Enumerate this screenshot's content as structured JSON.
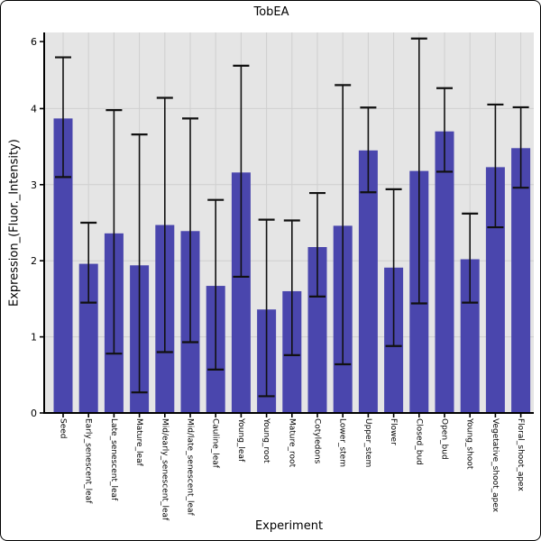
{
  "title": "TobEA",
  "colors": {
    "bar": "#4a46ad",
    "plot_bg": "#e5e5e5",
    "grid": "#cfcfcf",
    "axis": "#000000",
    "error": "#111111",
    "text": "#000000",
    "frame_border": "#000000",
    "page_bg": "#ffffff"
  },
  "chart_data": {
    "type": "bar",
    "title": "TobEA",
    "xlabel": "Experiment",
    "ylabel": "Expression_(Fluor._Intensity)",
    "categories": [
      "Seed",
      "Early_senescent_leaf",
      "Late_senescent_leaf",
      "Mature_leaf",
      "Mid/early_senescent_leaf",
      "Mid/late_senescent_leaf",
      "Cauline_leaf",
      "Young_leaf",
      "Young_root",
      "Mature_root",
      "Cotyledons",
      "Lower_stem",
      "Upper_stem",
      "Flower",
      "Closed_bud",
      "Open_bud",
      "Young_shoot",
      "Vegetative_shoot_apex",
      "Floral_shoot_apex"
    ],
    "values": [
      3.87,
      1.96,
      2.36,
      1.94,
      2.47,
      2.39,
      1.67,
      3.16,
      1.36,
      1.6,
      2.18,
      2.46,
      3.45,
      1.91,
      3.18,
      3.7,
      2.02,
      3.23,
      3.48
    ],
    "error_low": [
      3.1,
      1.45,
      0.78,
      0.27,
      0.8,
      0.93,
      0.57,
      1.79,
      0.22,
      0.76,
      1.53,
      0.64,
      2.9,
      0.88,
      1.44,
      3.17,
      1.45,
      2.44,
      2.96
    ],
    "error_high": [
      5.53,
      2.5,
      3.98,
      3.66,
      4.32,
      3.87,
      2.8,
      5.28,
      2.54,
      2.53,
      2.89,
      4.7,
      4.03,
      2.94,
      6.09,
      4.61,
      2.62,
      4.12,
      4.04
    ],
    "yticks": [
      0,
      1,
      2,
      3,
      4,
      6
    ],
    "grid_yticks": [
      1,
      2,
      3,
      4
    ],
    "scale": {
      "anchors": [
        [
          0,
          0
        ],
        [
          4,
          0.8
        ],
        [
          6,
          0.976
        ]
      ]
    },
    "grid": true,
    "legend": false
  }
}
